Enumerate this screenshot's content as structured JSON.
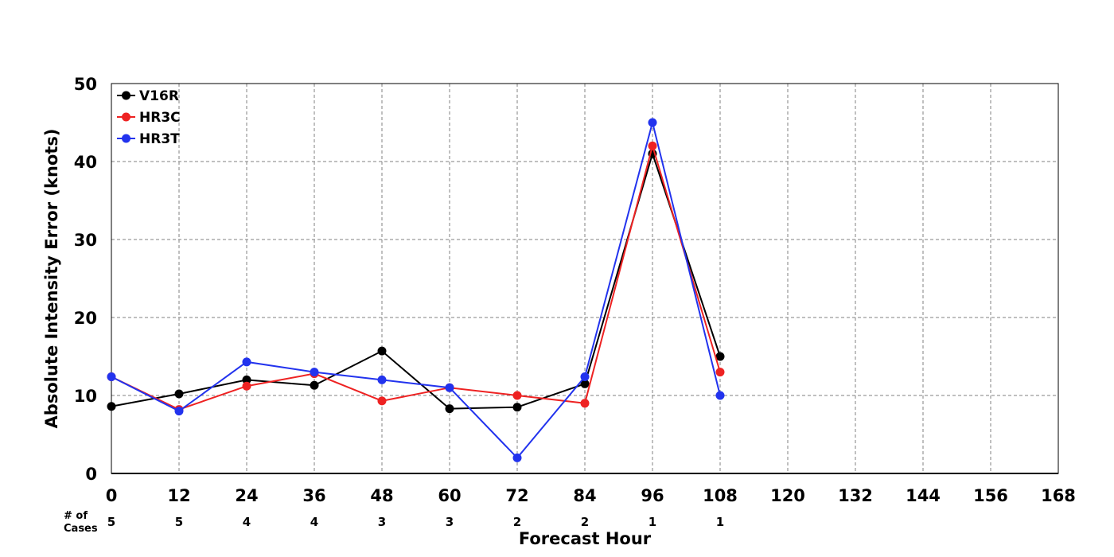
{
  "chart_data": {
    "type": "line",
    "xlabel": "Forecast Hour",
    "ylabel": "Absolute Intensity Error (knots)",
    "xlim": [
      0,
      168
    ],
    "ylim": [
      0,
      50
    ],
    "x_ticks": [
      0,
      12,
      24,
      36,
      48,
      60,
      72,
      84,
      96,
      108,
      120,
      132,
      144,
      156,
      168
    ],
    "y_ticks": [
      0,
      10,
      20,
      30,
      40,
      50
    ],
    "grid": true,
    "grid_style": "dashed",
    "legend_position": "top-left",
    "cases_label": [
      "# of",
      "Cases"
    ],
    "cases": [
      {
        "x": 0,
        "count": "5"
      },
      {
        "x": 12,
        "count": "5"
      },
      {
        "x": 24,
        "count": "4"
      },
      {
        "x": 36,
        "count": "4"
      },
      {
        "x": 48,
        "count": "3"
      },
      {
        "x": 60,
        "count": "3"
      },
      {
        "x": 72,
        "count": "2"
      },
      {
        "x": 84,
        "count": "2"
      },
      {
        "x": 96,
        "count": "1"
      },
      {
        "x": 108,
        "count": "1"
      }
    ],
    "series": [
      {
        "name": "V16R",
        "color": "#000000",
        "x": [
          0,
          12,
          24,
          36,
          48,
          60,
          72,
          84,
          96,
          108
        ],
        "values": [
          8.6,
          10.2,
          12.0,
          11.3,
          15.7,
          8.3,
          8.5,
          11.5,
          41.0,
          15.0
        ]
      },
      {
        "name": "HR3C",
        "color": "#ee2222",
        "x": [
          0,
          12,
          24,
          36,
          48,
          60,
          72,
          84,
          96,
          108
        ],
        "values": [
          12.4,
          8.2,
          11.2,
          12.8,
          9.3,
          11.0,
          10.0,
          9.0,
          42.0,
          13.0
        ]
      },
      {
        "name": "HR3T",
        "color": "#2233ee",
        "x": [
          0,
          12,
          24,
          36,
          48,
          60,
          72,
          84,
          96,
          108
        ],
        "values": [
          12.4,
          8.0,
          14.3,
          13.0,
          12.0,
          11.0,
          2.0,
          12.4,
          45.0,
          10.0
        ]
      }
    ]
  }
}
